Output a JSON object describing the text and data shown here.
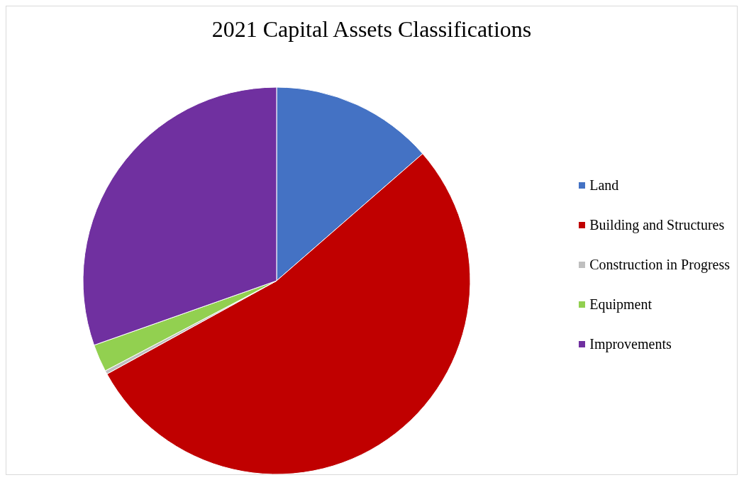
{
  "chart_data": {
    "type": "pie",
    "title": "2021 Capital Assets Classifications",
    "categories": [
      "Land",
      "Building and Structures",
      "Construction in Progress",
      "Equipment",
      "Improvements"
    ],
    "values": [
      13.6,
      53.4,
      0.3,
      2.3,
      30.4
    ],
    "colors": [
      "#4472c4",
      "#c00000",
      "#bfbfbf",
      "#92d050",
      "#7030a0"
    ],
    "legend": "right"
  }
}
